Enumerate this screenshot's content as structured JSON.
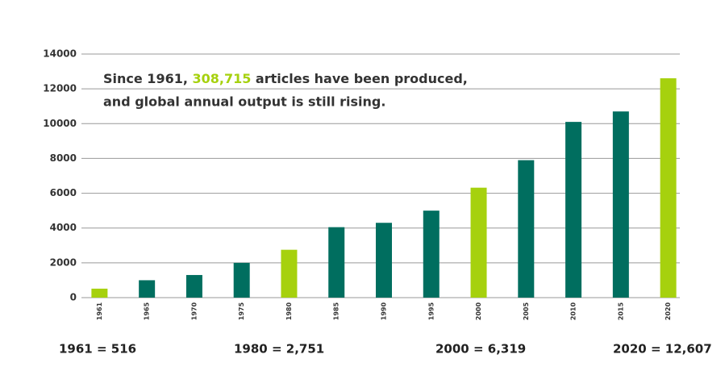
{
  "chart_data": {
    "type": "bar",
    "annotation": {
      "line1": [
        "Since 1961, ",
        "308,715",
        " articles have been produced,"
      ],
      "line2": "and global annual output is still rising.",
      "highlight_color": "#a6d10e"
    },
    "categories": [
      "1961",
      "1965",
      "1970",
      "1975",
      "1980",
      "1985",
      "1990",
      "1995",
      "2000",
      "2005",
      "2010",
      "2015",
      "2020"
    ],
    "values": [
      516,
      1000,
      1300,
      2000,
      2751,
      4050,
      4300,
      5000,
      6319,
      7900,
      10100,
      10700,
      12607
    ],
    "colors": [
      "#a6d10e",
      "#006e5f",
      "#006e5f",
      "#006e5f",
      "#a6d10e",
      "#006e5f",
      "#006e5f",
      "#006e5f",
      "#a6d10e",
      "#006e5f",
      "#006e5f",
      "#006e5f",
      "#a6d10e"
    ],
    "ylim": [
      0,
      14000
    ],
    "yticks": [
      0,
      2000,
      4000,
      6000,
      8000,
      10000,
      12000,
      14000
    ],
    "grid": true,
    "callouts": [
      "1961 = 516",
      "1980 = 2,751",
      "2000 = 6,319",
      "2020 = 12,607"
    ]
  }
}
